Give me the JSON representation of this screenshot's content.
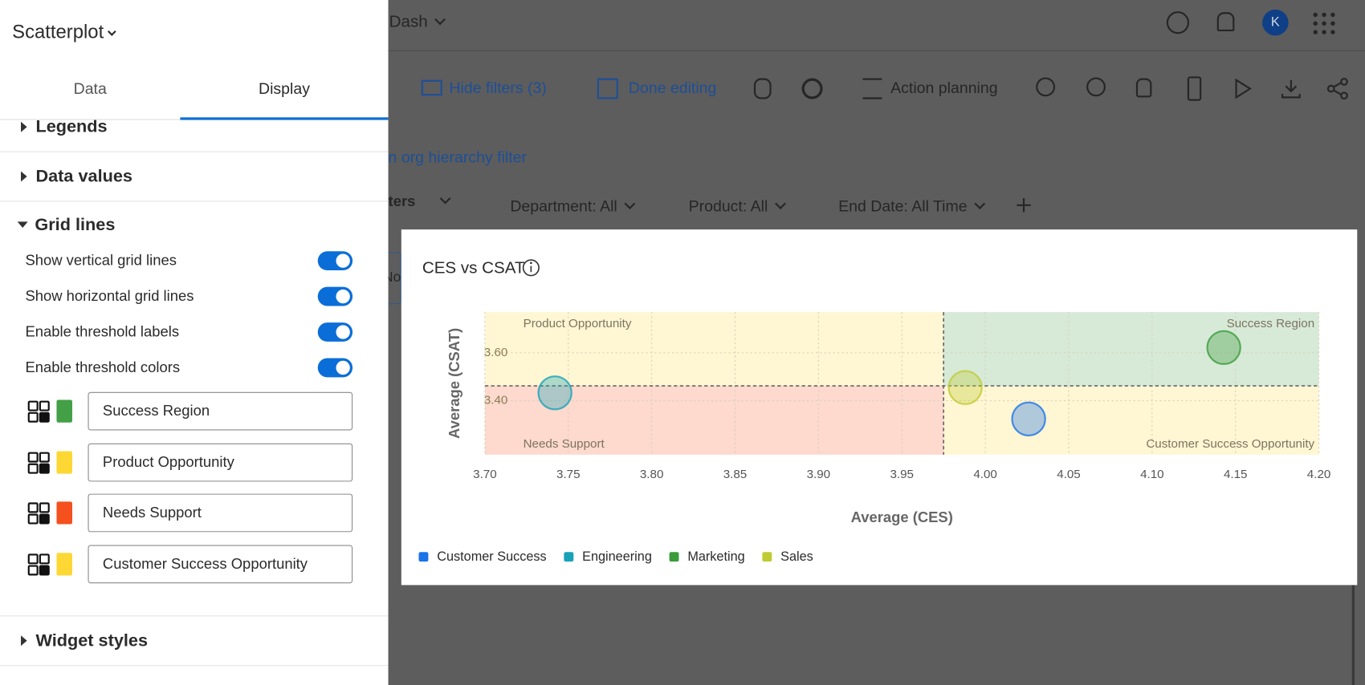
{
  "app": {
    "dashboard": "Dash",
    "avatar": "K"
  },
  "toolbar": {
    "hide_filters": "Hide filters (3)",
    "done_editing": "Done editing",
    "action_planning": "Action planning"
  },
  "filters": {
    "org_link": "n org hierarchy filter",
    "filters_label": "ters",
    "tab": "No",
    "items": [
      "Department: All",
      "Product: All",
      "End Date: All Time"
    ]
  },
  "sidebar": {
    "widget_type": "Scatterplot",
    "tabs": [
      "Data",
      "Display"
    ],
    "sections": [
      "Legends",
      "Data values",
      "Grid lines",
      "Widget styles"
    ],
    "toggles": [
      {
        "label": "Show vertical grid lines",
        "on": true
      },
      {
        "label": "Show horizontal grid lines",
        "on": true
      },
      {
        "label": "Enable threshold labels",
        "on": true
      },
      {
        "label": "Enable threshold colors",
        "on": true
      }
    ]
  },
  "chart_data": {
    "type": "scatter",
    "title": "CES vs CSAT",
    "x_label": "Average (CES)",
    "y_label": "Average (CSAT)",
    "xlim": [
      3.7,
      4.2
    ],
    "ylim": [
      3.175,
      3.77
    ],
    "xticks": [
      {
        "value": 3.7,
        "label": "3.70"
      },
      {
        "value": 3.75,
        "label": "3.75"
      },
      {
        "value": 3.8,
        "label": "3.80"
      },
      {
        "value": 3.85,
        "label": "3.85"
      },
      {
        "value": 3.9,
        "label": "3.90"
      },
      {
        "value": 3.95,
        "label": "3.95"
      },
      {
        "value": 4.0,
        "label": "4.00"
      },
      {
        "value": 4.05,
        "label": "4.05"
      },
      {
        "value": 4.1,
        "label": "4.10"
      },
      {
        "value": 4.15,
        "label": "4.15"
      },
      {
        "value": 4.2,
        "label": "4.20"
      }
    ],
    "yticks": [
      {
        "value": 3.4,
        "label": "3.40"
      },
      {
        "value": 3.6,
        "label": "3.60"
      }
    ],
    "grid": true,
    "x_threshold": 3.975,
    "y_threshold": 3.462,
    "quadrants": [
      {
        "name": "Success Region",
        "color": "#43a047",
        "corner": "top-right"
      },
      {
        "name": "Product Opportunity",
        "color": "#fdd835",
        "corner": "top-left"
      },
      {
        "name": "Needs Support",
        "color": "#f4511e",
        "corner": "bottom-left"
      },
      {
        "name": "Customer Success Opportunity",
        "color": "#fdd835",
        "corner": "bottom-right"
      }
    ],
    "series": [
      {
        "name": "Customer Success",
        "color": "#1a73e8",
        "x": [
          4.026
        ],
        "values": [
          3.324
        ]
      },
      {
        "name": "Engineering",
        "color": "#17a2b8",
        "x": [
          3.742
        ],
        "values": [
          3.433
        ]
      },
      {
        "name": "Marketing",
        "color": "#3b9b3b",
        "x": [
          4.143
        ],
        "values": [
          3.622
        ]
      },
      {
        "name": "Sales",
        "color": "#c0ca33",
        "x": [
          3.988
        ],
        "values": [
          3.455
        ]
      }
    ]
  }
}
